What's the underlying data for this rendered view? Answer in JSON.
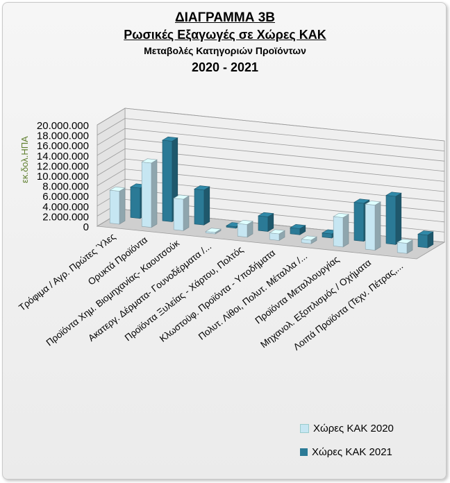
{
  "chart_data": {
    "type": "bar",
    "title": "ΔΙΑΓΡΑΜΜΑ 3Β",
    "subtitle": "Ρωσικές Εξαγωγές σε Χώρες  ΚΑΚ",
    "subtitle2": "Μεταβολές Κατηγοριών Προϊόντων",
    "period": "2020 - 2021",
    "ylabel": "εκ.δολ.ΗΠΑ",
    "ylim": [
      0,
      20000000
    ],
    "yticks": [
      "0",
      "2.000.000",
      "4.000.000",
      "6.000.000",
      "8.000.000",
      "10.000.000",
      "12.000.000",
      "14.000.000",
      "16.000.000",
      "18.000.000",
      "20.000.000"
    ],
    "categories": [
      "Τρόφιμα / Αγρ. Πρώτες Ύλες",
      "Ορυκτά Προϊόντα",
      "Προϊόντα Χημ. Βιομηχανίας- Καουτσούκ",
      "Ακατεργ. Δέρματα- Γουνοδέρματα /...",
      "Προϊόντα Ξυλείας - Χάρτου, Πολτός",
      "Κλωστοϋφ. Προϊόντα - Υποδήματα",
      "Πολυτ. Λίθοι, Πολυτ. Μέταλλα /...",
      "Προϊόντα Μεταλλουργίας",
      "Μηχανολ. Εξοπλισμός / Οχήματα",
      "Λοιπά Προϊόντα (Τεχν. Πέτρας,..."
    ],
    "series": [
      {
        "name": "Χώρες ΚΑΚ 2020",
        "color": "#c6e6f2",
        "values": [
          6500000,
          12700000,
          6200000,
          300000,
          2500000,
          1300000,
          700000,
          5800000,
          8900000,
          2000000
        ]
      },
      {
        "name": "Χώρες ΚΑΚ 2021",
        "color": "#2b7a96",
        "values": [
          6000000,
          15900000,
          6900000,
          300000,
          2900000,
          1200000,
          800000,
          7500000,
          9500000,
          2500000
        ]
      }
    ],
    "legend_position": "bottom-right",
    "grid": true
  }
}
